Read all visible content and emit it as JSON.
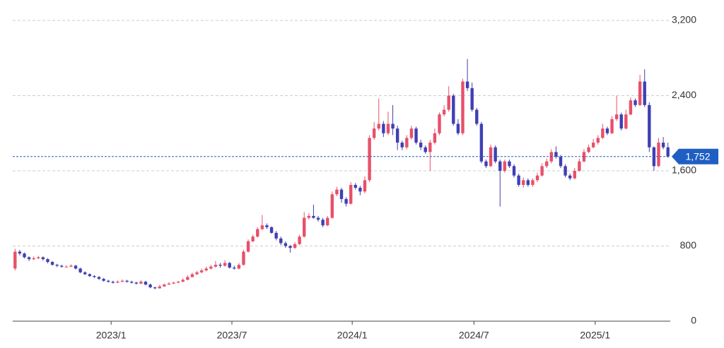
{
  "chart_data": {
    "type": "candlestick",
    "up_color": "#e8506a",
    "down_color": "#3f3fb5",
    "ylim": [
      0,
      3200
    ],
    "yticks": [
      0,
      800,
      {
        "value": 1600,
        "label": "1,600"
      },
      {
        "value": 2400,
        "label": "2,400"
      },
      {
        "value": 3200,
        "label": "3,200"
      }
    ],
    "grid": true,
    "xlim": [
      -0.5,
      140.5
    ],
    "xticks": [
      {
        "value": 20.6,
        "label": "2023/1"
      },
      {
        "value": 46.5,
        "label": "2023/7"
      },
      {
        "value": 72.3,
        "label": "2024/1"
      },
      {
        "value": 98.4,
        "label": "2024/7"
      },
      {
        "value": 124.4,
        "label": "2025/1"
      }
    ],
    "last": {
      "value": 1752,
      "label": "1,752",
      "color": "#1f5fc4"
    },
    "ohlc": [
      [
        560,
        770,
        540,
        740
      ],
      [
        740,
        760,
        700,
        720
      ],
      [
        720,
        730,
        670,
        680
      ],
      [
        680,
        690,
        640,
        660
      ],
      [
        660,
        690,
        650,
        670
      ],
      [
        670,
        695,
        660,
        680
      ],
      [
        680,
        690,
        645,
        660
      ],
      [
        660,
        670,
        615,
        630
      ],
      [
        630,
        640,
        590,
        600
      ],
      [
        600,
        610,
        575,
        590
      ],
      [
        590,
        600,
        570,
        580
      ],
      [
        580,
        595,
        570,
        580
      ],
      [
        580,
        605,
        575,
        590
      ],
      [
        590,
        600,
        550,
        560
      ],
      [
        560,
        570,
        510,
        520
      ],
      [
        520,
        530,
        490,
        500
      ],
      [
        500,
        510,
        470,
        480
      ],
      [
        480,
        490,
        460,
        470
      ],
      [
        470,
        480,
        440,
        450
      ],
      [
        450,
        460,
        420,
        430
      ],
      [
        430,
        440,
        410,
        420
      ],
      [
        420,
        430,
        400,
        410
      ],
      [
        410,
        435,
        405,
        420
      ],
      [
        420,
        445,
        415,
        430
      ],
      [
        430,
        440,
        410,
        420
      ],
      [
        420,
        430,
        400,
        410
      ],
      [
        410,
        420,
        390,
        400
      ],
      [
        400,
        435,
        395,
        420
      ],
      [
        420,
        430,
        380,
        390
      ],
      [
        390,
        400,
        350,
        360
      ],
      [
        360,
        365,
        340,
        350
      ],
      [
        350,
        385,
        345,
        370
      ],
      [
        370,
        400,
        365,
        390
      ],
      [
        390,
        415,
        385,
        400
      ],
      [
        400,
        420,
        395,
        410
      ],
      [
        410,
        430,
        405,
        420
      ],
      [
        420,
        455,
        415,
        440
      ],
      [
        440,
        490,
        435,
        470
      ],
      [
        470,
        515,
        465,
        500
      ],
      [
        500,
        535,
        490,
        520
      ],
      [
        520,
        560,
        510,
        540
      ],
      [
        540,
        580,
        530,
        560
      ],
      [
        560,
        600,
        550,
        580
      ],
      [
        580,
        640,
        570,
        600
      ],
      [
        600,
        620,
        570,
        590
      ],
      [
        590,
        650,
        580,
        620
      ],
      [
        620,
        630,
        560,
        570
      ],
      [
        570,
        590,
        550,
        560
      ],
      [
        560,
        620,
        550,
        600
      ],
      [
        600,
        760,
        590,
        740
      ],
      [
        740,
        870,
        730,
        850
      ],
      [
        850,
        920,
        840,
        900
      ],
      [
        900,
        1000,
        890,
        980
      ],
      [
        980,
        1130,
        970,
        1020
      ],
      [
        1020,
        1040,
        980,
        1000
      ],
      [
        1000,
        1010,
        930,
        940
      ],
      [
        940,
        960,
        860,
        880
      ],
      [
        880,
        900,
        810,
        830
      ],
      [
        830,
        850,
        780,
        800
      ],
      [
        800,
        810,
        730,
        780
      ],
      [
        780,
        840,
        770,
        820
      ],
      [
        820,
        920,
        810,
        900
      ],
      [
        900,
        1160,
        890,
        1100
      ],
      [
        1100,
        1150,
        1080,
        1120
      ],
      [
        1120,
        1240,
        1090,
        1100
      ],
      [
        1100,
        1120,
        1060,
        1080
      ],
      [
        1080,
        1100,
        1000,
        1020
      ],
      [
        1020,
        1120,
        1010,
        1100
      ],
      [
        1100,
        1380,
        1090,
        1350
      ],
      [
        1350,
        1430,
        1330,
        1400
      ],
      [
        1400,
        1420,
        1260,
        1300
      ],
      [
        1300,
        1320,
        1220,
        1250
      ],
      [
        1250,
        1480,
        1240,
        1450
      ],
      [
        1450,
        1470,
        1400,
        1420
      ],
      [
        1420,
        1440,
        1340,
        1380
      ],
      [
        1380,
        1540,
        1360,
        1500
      ],
      [
        1500,
        1980,
        1480,
        1950
      ],
      [
        1950,
        2120,
        1930,
        2050
      ],
      [
        2050,
        2370,
        2030,
        2100
      ],
      [
        2100,
        2130,
        1960,
        2000
      ],
      [
        2000,
        2230,
        1980,
        2100
      ],
      [
        2100,
        2300,
        1980,
        2050
      ],
      [
        2050,
        2080,
        1820,
        1900
      ],
      [
        1900,
        1920,
        1820,
        1850
      ],
      [
        1850,
        1980,
        1830,
        1950
      ],
      [
        1950,
        2080,
        1930,
        2050
      ],
      [
        2050,
        2070,
        1880,
        1900
      ],
      [
        1900,
        1930,
        1820,
        1850
      ],
      [
        1850,
        1870,
        1780,
        1800
      ],
      [
        1800,
        1930,
        1600,
        1900
      ],
      [
        1900,
        2050,
        1880,
        2000
      ],
      [
        2000,
        2220,
        1980,
        2200
      ],
      [
        2200,
        2300,
        2180,
        2250
      ],
      [
        2250,
        2500,
        2230,
        2400
      ],
      [
        2400,
        2420,
        2080,
        2100
      ],
      [
        2100,
        2150,
        1980,
        2000
      ],
      [
        2000,
        2580,
        1980,
        2550
      ],
      [
        2550,
        2790,
        2450,
        2480
      ],
      [
        2480,
        2540,
        2230,
        2250
      ],
      [
        2250,
        2270,
        2080,
        2100
      ],
      [
        2100,
        2120,
        1680,
        1700
      ],
      [
        1700,
        1720,
        1630,
        1650
      ],
      [
        1650,
        1880,
        1640,
        1850
      ],
      [
        1850,
        1870,
        1680,
        1700
      ],
      [
        1700,
        1720,
        1220,
        1600
      ],
      [
        1600,
        1720,
        1580,
        1700
      ],
      [
        1700,
        1720,
        1630,
        1650
      ],
      [
        1650,
        1670,
        1530,
        1550
      ],
      [
        1550,
        1570,
        1430,
        1450
      ],
      [
        1450,
        1530,
        1420,
        1500
      ],
      [
        1500,
        1520,
        1430,
        1450
      ],
      [
        1450,
        1520,
        1430,
        1500
      ],
      [
        1500,
        1580,
        1480,
        1550
      ],
      [
        1550,
        1680,
        1540,
        1650
      ],
      [
        1650,
        1730,
        1630,
        1700
      ],
      [
        1700,
        1830,
        1680,
        1800
      ],
      [
        1800,
        1860,
        1730,
        1750
      ],
      [
        1750,
        1770,
        1630,
        1650
      ],
      [
        1650,
        1670,
        1530,
        1550
      ],
      [
        1550,
        1570,
        1500,
        1520
      ],
      [
        1520,
        1630,
        1510,
        1600
      ],
      [
        1600,
        1730,
        1590,
        1700
      ],
      [
        1700,
        1830,
        1690,
        1800
      ],
      [
        1800,
        1880,
        1790,
        1850
      ],
      [
        1850,
        1940,
        1840,
        1900
      ],
      [
        1900,
        1980,
        1880,
        1950
      ],
      [
        1950,
        2100,
        1940,
        2050
      ],
      [
        2050,
        2070,
        1980,
        2000
      ],
      [
        2000,
        2180,
        1990,
        2150
      ],
      [
        2150,
        2400,
        2130,
        2200
      ],
      [
        2200,
        2220,
        2030,
        2050
      ],
      [
        2050,
        2250,
        2040,
        2200
      ],
      [
        2200,
        2380,
        2190,
        2350
      ],
      [
        2350,
        2370,
        2280,
        2300
      ],
      [
        2300,
        2620,
        2290,
        2550
      ],
      [
        2550,
        2680,
        2280,
        2300
      ],
      [
        2300,
        2330,
        1800,
        1850
      ],
      [
        1850,
        1860,
        1600,
        1650
      ],
      [
        1650,
        1950,
        1640,
        1900
      ],
      [
        1900,
        1960,
        1830,
        1850
      ],
      [
        1850,
        1900,
        1740,
        1752
      ]
    ]
  }
}
